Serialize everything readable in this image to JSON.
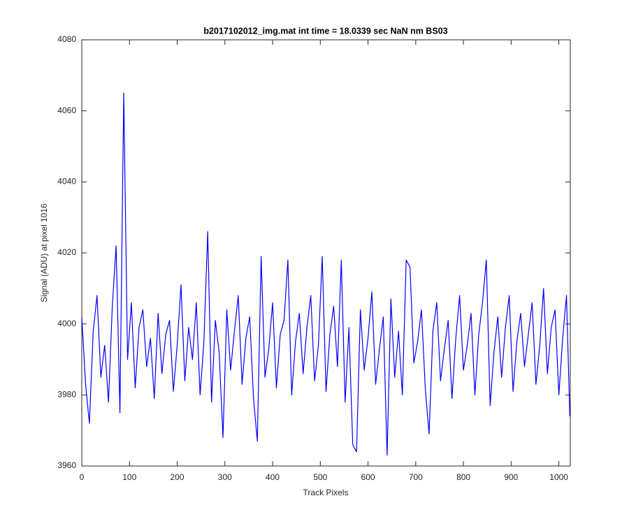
{
  "chart_data": {
    "type": "line",
    "title": "b2017102012_img.mat int time = 18.0339 sec  NaN nm BS03",
    "x_label": "Track Pixels",
    "y_label": "Signal (ADU) at pixel 1016",
    "x": [
      0,
      8,
      16,
      24,
      32,
      40,
      48,
      56,
      64,
      72,
      80,
      88,
      96,
      104,
      112,
      120,
      128,
      136,
      144,
      152,
      160,
      168,
      176,
      184,
      192,
      200,
      208,
      216,
      224,
      232,
      240,
      248,
      256,
      264,
      272,
      280,
      288,
      296,
      304,
      312,
      320,
      328,
      336,
      344,
      352,
      360,
      368,
      376,
      384,
      392,
      400,
      408,
      416,
      424,
      432,
      440,
      448,
      456,
      464,
      472,
      480,
      488,
      496,
      504,
      512,
      520,
      528,
      536,
      544,
      552,
      560,
      568,
      576,
      584,
      592,
      600,
      608,
      616,
      624,
      632,
      640,
      648,
      656,
      664,
      672,
      680,
      688,
      696,
      704,
      712,
      720,
      728,
      736,
      744,
      752,
      760,
      768,
      776,
      784,
      792,
      800,
      808,
      816,
      824,
      832,
      840,
      848,
      856,
      864,
      872,
      880,
      888,
      896,
      904,
      912,
      920,
      928,
      936,
      944,
      952,
      960,
      968,
      976,
      984,
      992,
      1000,
      1008,
      1016,
      1023
    ],
    "series": [
      {
        "name": "signal",
        "color": "#0000ff",
        "values": [
          4002,
          3983,
          3972,
          3998,
          4008,
          3985,
          3994,
          3978,
          4005,
          4022,
          3975,
          4065,
          3990,
          4006,
          3982,
          3999,
          4004,
          3988,
          3996,
          3979,
          4003,
          3986,
          3997,
          4001,
          3981,
          3994,
          4011,
          3984,
          3999,
          3990,
          4006,
          3980,
          3995,
          4026,
          3978,
          4001,
          3992,
          3968,
          4004,
          3987,
          3998,
          4008,
          3983,
          3996,
          4002,
          3979,
          3967,
          4019,
          3985,
          3993,
          4006,
          3982,
          3997,
          4001,
          4018,
          3980,
          3995,
          4003,
          3986,
          3999,
          4008,
          3984,
          3994,
          4019,
          3981,
          3997,
          4005,
          3988,
          4018,
          3978,
          3999,
          3966,
          3964,
          4004,
          3987,
          3996,
          4009,
          3983,
          3993,
          4002,
          3963,
          4007,
          3985,
          3998,
          3980,
          4018,
          4016,
          3989,
          3995,
          4004,
          3982,
          3969,
          3998,
          4006,
          3984,
          3993,
          4001,
          3979,
          3996,
          4008,
          3987,
          3994,
          4003,
          3980,
          3997,
          4006,
          4018,
          3977,
          3992,
          4002,
          3985,
          3999,
          4008,
          3981,
          3995,
          4003,
          3988,
          3997,
          4006,
          3983,
          3994,
          4010,
          3986,
          3999,
          4004,
          3980,
          3996,
          4008,
          3974
        ]
      }
    ],
    "xlim": [
      0,
      1024
    ],
    "ylim": [
      3960,
      4080
    ],
    "xticks": [
      0,
      100,
      200,
      300,
      400,
      500,
      600,
      700,
      800,
      900,
      1000
    ],
    "yticks": [
      3960,
      3980,
      4000,
      4020,
      4040,
      4060,
      4080
    ],
    "grid": false
  }
}
